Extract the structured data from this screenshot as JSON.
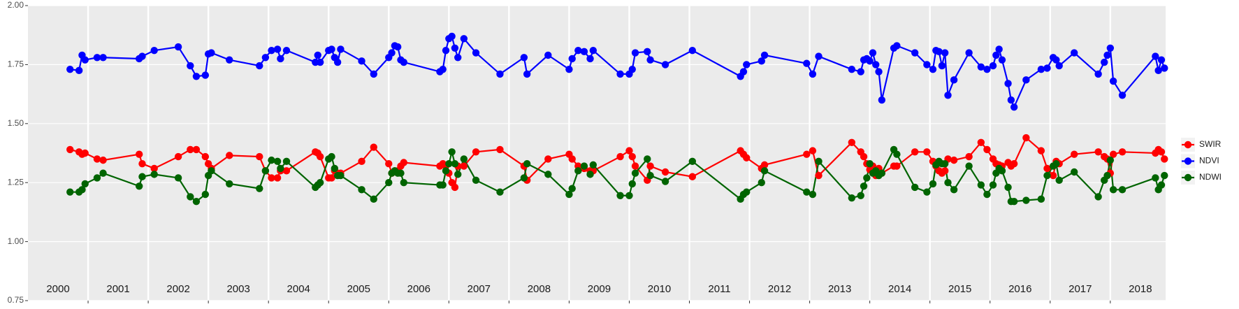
{
  "chart_data": {
    "type": "line",
    "x": [
      2000.7,
      2000.85,
      2000.9,
      2000.95,
      2001.15,
      2001.25,
      2001.85,
      2001.9,
      2002.1,
      2002.5,
      2002.7,
      2002.8,
      2002.95,
      2003.0,
      2003.05,
      2003.35,
      2003.85,
      2003.95,
      2004.05,
      2004.15,
      2004.2,
      2004.3,
      2004.78,
      2004.82,
      2004.86,
      2005.0,
      2005.05,
      2005.1,
      2005.15,
      2005.2,
      2005.55,
      2005.75,
      2006.0,
      2006.05,
      2006.1,
      2006.15,
      2006.2,
      2006.25,
      2006.85,
      2006.9,
      2006.95,
      2007.0,
      2007.05,
      2007.1,
      2007.15,
      2007.25,
      2007.45,
      2007.85,
      2008.25,
      2008.3,
      2008.65,
      2009.0,
      2009.05,
      2009.15,
      2009.25,
      2009.35,
      2009.4,
      2009.85,
      2010.0,
      2010.05,
      2010.1,
      2010.3,
      2010.35,
      2010.6,
      2011.05,
      2011.85,
      2011.9,
      2011.95,
      2012.2,
      2012.25,
      2012.95,
      2013.05,
      2013.15,
      2013.7,
      2013.85,
      2013.9,
      2013.95,
      2014.0,
      2014.05,
      2014.1,
      2014.15,
      2014.2,
      2014.4,
      2014.45,
      2014.75,
      2014.95,
      2015.05,
      2015.1,
      2015.15,
      2015.2,
      2015.25,
      2015.3,
      2015.4,
      2015.65,
      2015.85,
      2015.95,
      2016.05,
      2016.1,
      2016.15,
      2016.2,
      2016.3,
      2016.35,
      2016.4,
      2016.6,
      2016.85,
      2016.95,
      2017.05,
      2017.1,
      2017.15,
      2017.4,
      2017.8,
      2017.9,
      2017.95,
      2018.0,
      2018.05,
      2018.2,
      2018.75,
      2018.8,
      2018.85,
      2018.9
    ],
    "series": [
      {
        "name": "SWIR",
        "color": "#ff0000",
        "values": [
          1.39,
          1.38,
          1.37,
          1.375,
          1.35,
          1.345,
          1.37,
          1.33,
          1.31,
          1.36,
          1.39,
          1.39,
          1.36,
          1.33,
          1.31,
          1.365,
          1.36,
          1.3,
          1.27,
          1.27,
          1.3,
          1.3,
          1.38,
          1.375,
          1.36,
          1.27,
          1.27,
          1.3,
          1.29,
          1.29,
          1.34,
          1.4,
          1.33,
          1.29,
          1.3,
          1.3,
          1.32,
          1.335,
          1.32,
          1.33,
          1.32,
          1.29,
          1.25,
          1.23,
          1.32,
          1.32,
          1.38,
          1.39,
          1.32,
          1.26,
          1.35,
          1.37,
          1.35,
          1.32,
          1.31,
          1.3,
          1.3,
          1.36,
          1.385,
          1.36,
          1.32,
          1.26,
          1.32,
          1.295,
          1.275,
          1.385,
          1.37,
          1.355,
          1.31,
          1.325,
          1.37,
          1.385,
          1.28,
          1.42,
          1.38,
          1.36,
          1.33,
          1.305,
          1.32,
          1.28,
          1.31,
          1.29,
          1.32,
          1.32,
          1.38,
          1.38,
          1.34,
          1.32,
          1.3,
          1.29,
          1.3,
          1.35,
          1.345,
          1.36,
          1.42,
          1.39,
          1.35,
          1.33,
          1.325,
          1.32,
          1.335,
          1.32,
          1.33,
          1.44,
          1.385,
          1.31,
          1.28,
          1.34,
          1.33,
          1.37,
          1.38,
          1.36,
          1.35,
          1.29,
          1.37,
          1.38,
          1.375,
          1.39,
          1.38,
          1.35
        ]
      },
      {
        "name": "NDVI",
        "color": "#0000ff",
        "values": [
          1.73,
          1.725,
          1.79,
          1.77,
          1.78,
          1.78,
          1.775,
          1.785,
          1.81,
          1.825,
          1.745,
          1.7,
          1.705,
          1.795,
          1.8,
          1.77,
          1.745,
          1.78,
          1.81,
          1.815,
          1.775,
          1.81,
          1.76,
          1.79,
          1.76,
          1.81,
          1.815,
          1.78,
          1.76,
          1.815,
          1.765,
          1.71,
          1.78,
          1.8,
          1.83,
          1.825,
          1.77,
          1.76,
          1.72,
          1.73,
          1.81,
          1.86,
          1.87,
          1.82,
          1.78,
          1.86,
          1.8,
          1.71,
          1.78,
          1.71,
          1.79,
          1.73,
          1.775,
          1.81,
          1.805,
          1.775,
          1.81,
          1.71,
          1.71,
          1.73,
          1.8,
          1.805,
          1.77,
          1.75,
          1.81,
          1.7,
          1.72,
          1.75,
          1.765,
          1.79,
          1.755,
          1.71,
          1.785,
          1.73,
          1.72,
          1.77,
          1.775,
          1.765,
          1.8,
          1.75,
          1.72,
          1.6,
          1.82,
          1.83,
          1.8,
          1.75,
          1.73,
          1.81,
          1.805,
          1.745,
          1.8,
          1.62,
          1.685,
          1.8,
          1.74,
          1.73,
          1.745,
          1.79,
          1.815,
          1.77,
          1.67,
          1.6,
          1.57,
          1.685,
          1.73,
          1.735,
          1.78,
          1.77,
          1.745,
          1.8,
          1.71,
          1.76,
          1.79,
          1.82,
          1.68,
          1.62,
          1.785,
          1.725,
          1.77,
          1.735
        ]
      },
      {
        "name": "NDWI",
        "color": "#006400",
        "values": [
          1.21,
          1.21,
          1.22,
          1.245,
          1.27,
          1.29,
          1.235,
          1.275,
          1.285,
          1.27,
          1.19,
          1.17,
          1.2,
          1.28,
          1.3,
          1.245,
          1.225,
          1.3,
          1.345,
          1.34,
          1.31,
          1.34,
          1.23,
          1.24,
          1.25,
          1.35,
          1.36,
          1.31,
          1.28,
          1.28,
          1.22,
          1.18,
          1.25,
          1.29,
          1.3,
          1.29,
          1.29,
          1.25,
          1.24,
          1.24,
          1.3,
          1.33,
          1.38,
          1.33,
          1.285,
          1.35,
          1.26,
          1.21,
          1.27,
          1.33,
          1.285,
          1.2,
          1.225,
          1.3,
          1.32,
          1.285,
          1.325,
          1.195,
          1.195,
          1.245,
          1.29,
          1.35,
          1.28,
          1.255,
          1.34,
          1.18,
          1.2,
          1.21,
          1.25,
          1.3,
          1.21,
          1.2,
          1.34,
          1.185,
          1.195,
          1.235,
          1.27,
          1.33,
          1.29,
          1.3,
          1.28,
          1.29,
          1.39,
          1.37,
          1.23,
          1.21,
          1.245,
          1.325,
          1.34,
          1.33,
          1.33,
          1.25,
          1.22,
          1.32,
          1.24,
          1.2,
          1.24,
          1.29,
          1.31,
          1.3,
          1.23,
          1.17,
          1.17,
          1.175,
          1.18,
          1.28,
          1.32,
          1.33,
          1.26,
          1.295,
          1.19,
          1.26,
          1.28,
          1.345,
          1.22,
          1.22,
          1.27,
          1.22,
          1.24,
          1.28
        ]
      }
    ],
    "year_labels": [
      "2000",
      "2001",
      "2002",
      "2003",
      "2004",
      "2005",
      "2006",
      "2007",
      "2008",
      "2009",
      "2010",
      "2011",
      "2012",
      "2013",
      "2014",
      "2015",
      "2016",
      "2017",
      "2018"
    ],
    "xlim": [
      2000,
      2018.92
    ],
    "xticks": [
      2001,
      2002,
      2003,
      2004,
      2005,
      2006,
      2007,
      2008,
      2009,
      2010,
      2011,
      2012,
      2013,
      2014,
      2015,
      2016,
      2017,
      2018
    ],
    "ylim": [
      0.75,
      2.0
    ],
    "yticks": [
      0.75,
      {
        "value": 1.0,
        "label": "1.00"
      },
      1.25,
      {
        "value": 1.5,
        "label": "1.50"
      },
      1.75,
      {
        "value": 2.0,
        "label": "2.00"
      }
    ],
    "grid": true,
    "legend": "right"
  }
}
